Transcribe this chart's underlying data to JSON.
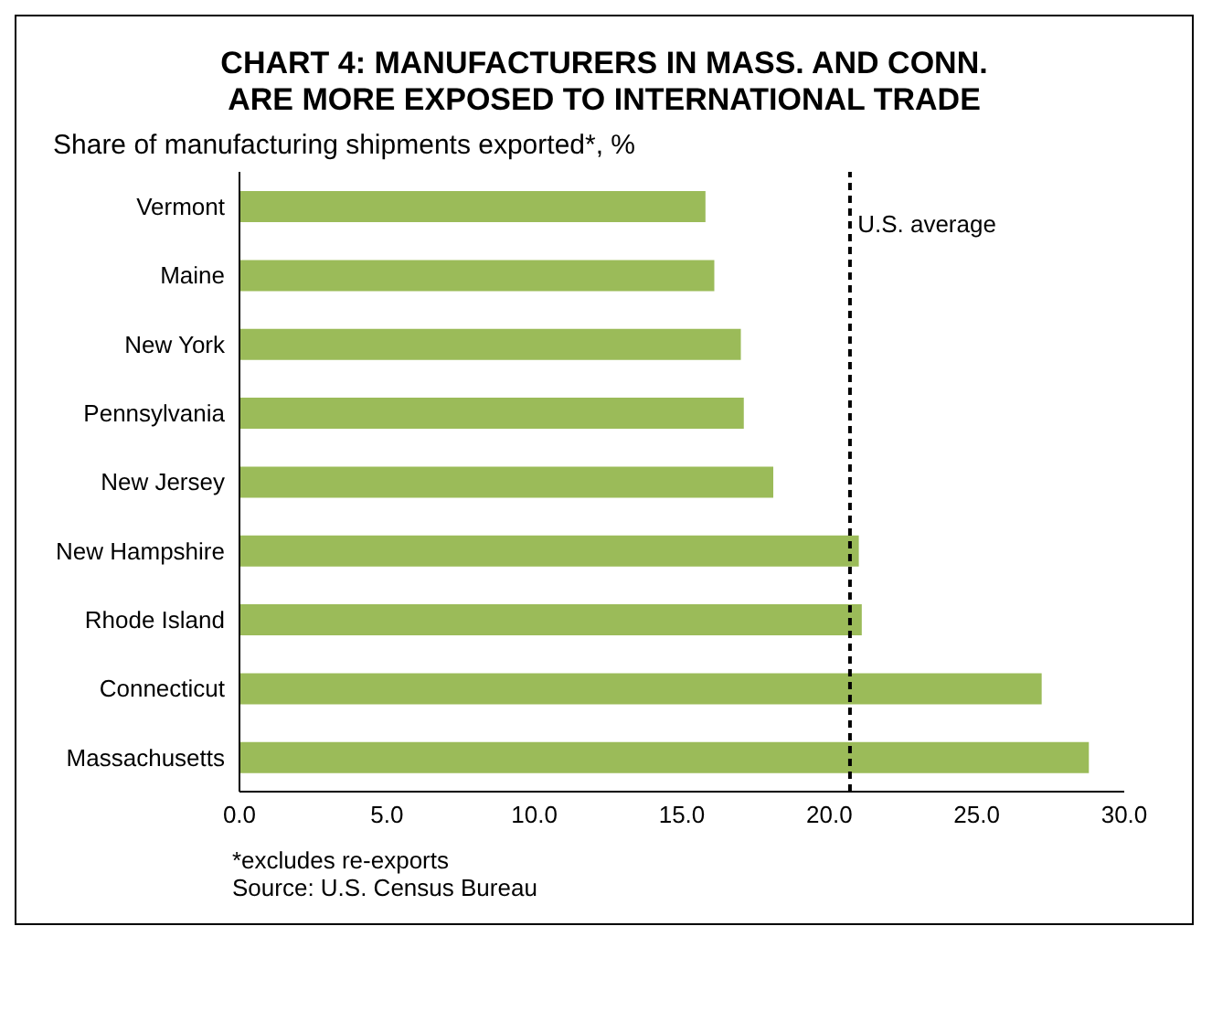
{
  "chart_data": {
    "type": "bar",
    "orientation": "horizontal",
    "title": "CHART 4: MANUFACTURERS IN MASS. AND CONN.\nARE MORE EXPOSED TO INTERNATIONAL TRADE",
    "subtitle": "Share of manufacturing shipments exported*, %",
    "categories": [
      "Vermont",
      "Maine",
      "New York",
      "Pennsylvania",
      "New Jersey",
      "New Hampshire",
      "Rhode Island",
      "Connecticut",
      "Massachusetts"
    ],
    "values": [
      15.8,
      16.1,
      17.0,
      17.1,
      18.1,
      21.0,
      21.1,
      27.2,
      28.8
    ],
    "color": "#9bbb59",
    "xlim": [
      0,
      30
    ],
    "xticks": [
      {
        "value": 0,
        "label": "0.0"
      },
      {
        "value": 5,
        "label": "5.0"
      },
      {
        "value": 10,
        "label": "10.0"
      },
      {
        "value": 15,
        "label": "15.0"
      },
      {
        "value": 20,
        "label": "20.0"
      },
      {
        "value": 25,
        "label": "25.0"
      },
      {
        "value": 30,
        "label": "30.0"
      }
    ],
    "ref_lines": [
      {
        "axis": "x",
        "value": 20.7,
        "label": "U.S. average",
        "color": "#000000",
        "line_style": "dashed"
      }
    ],
    "grid": false,
    "annotations": [
      "*excludes re-exports",
      "Source: U.S. Census Bureau"
    ]
  }
}
